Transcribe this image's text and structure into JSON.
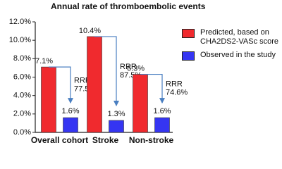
{
  "chart_data": {
    "type": "bar",
    "title": "Annual rate of thromboembolic events",
    "categories": [
      "Overall cohort",
      "Stroke",
      "Non-stroke"
    ],
    "series": [
      {
        "name": "Predicted, based on CHA2DS2-VASc score",
        "color": "#f02a2e",
        "values": [
          7.1,
          10.4,
          6.3
        ],
        "value_labels": [
          "7.1%",
          "10.4%",
          "6.3%"
        ]
      },
      {
        "name": "Observed in the study",
        "color": "#3535f2",
        "values": [
          1.6,
          1.3,
          1.6
        ],
        "value_labels": [
          "1.6%",
          "1.3%",
          "1.6%"
        ]
      }
    ],
    "annotations": [
      [
        "RRR",
        "77.5%"
      ],
      [
        "RRR",
        "87.5%"
      ],
      [
        "RRR",
        "74.6%"
      ]
    ],
    "ylim": [
      0,
      12
    ],
    "yticks": [
      {
        "value": 0,
        "label": "0.0%"
      },
      {
        "value": 2,
        "label": "2.0%"
      },
      {
        "value": 4,
        "label": "4.0%"
      },
      {
        "value": 6,
        "label": "6.0%"
      },
      {
        "value": 8,
        "label": "8.0%"
      },
      {
        "value": 10,
        "label": "10.0%"
      },
      {
        "value": 12,
        "label": "12.0%"
      }
    ],
    "grid": false
  }
}
